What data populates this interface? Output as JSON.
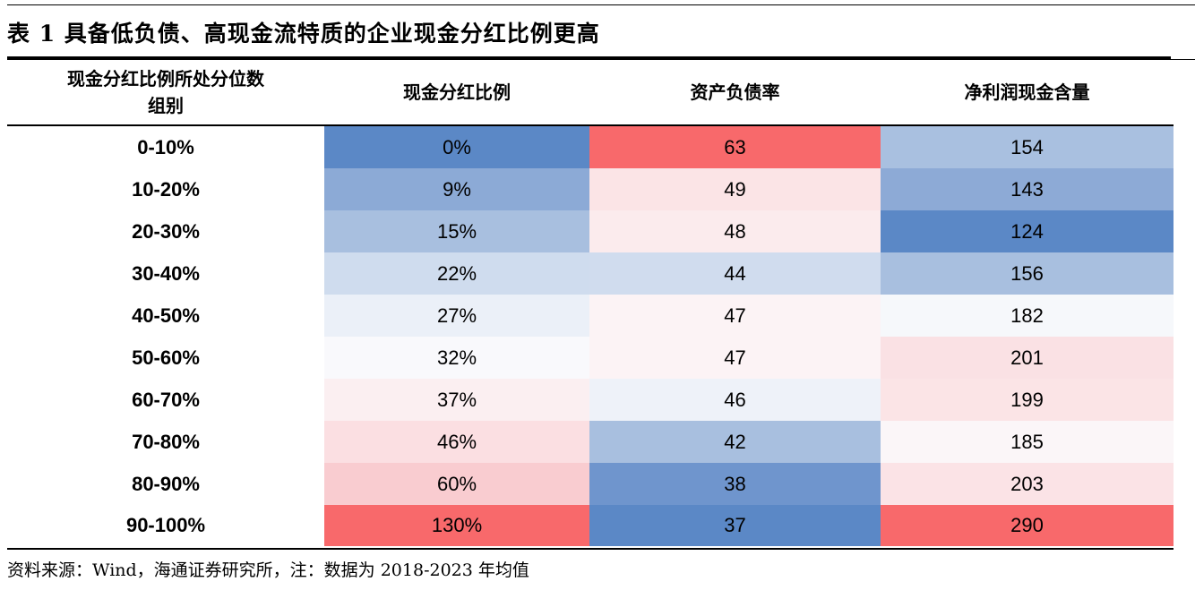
{
  "title": "表 1  具备低负债、高现金流特质的企业现金分红比例更高",
  "headers": {
    "group_line1": "现金分红比例所处分位数",
    "group_line2": "组别",
    "dividend": "现金分红比例",
    "debt": "资产负债率",
    "cash": "净利润现金含量"
  },
  "rows": [
    {
      "group": "0-10%",
      "dividend": "0%",
      "debt": "63",
      "cash": "154"
    },
    {
      "group": "10-20%",
      "dividend": "9%",
      "debt": "49",
      "cash": "143"
    },
    {
      "group": "20-30%",
      "dividend": "15%",
      "debt": "48",
      "cash": "124"
    },
    {
      "group": "30-40%",
      "dividend": "22%",
      "debt": "44",
      "cash": "156"
    },
    {
      "group": "40-50%",
      "dividend": "27%",
      "debt": "47",
      "cash": "182"
    },
    {
      "group": "50-60%",
      "dividend": "32%",
      "debt": "47",
      "cash": "201"
    },
    {
      "group": "60-70%",
      "dividend": "37%",
      "debt": "46",
      "cash": "199"
    },
    {
      "group": "70-80%",
      "dividend": "46%",
      "debt": "42",
      "cash": "185"
    },
    {
      "group": "80-90%",
      "dividend": "60%",
      "debt": "38",
      "cash": "203"
    },
    {
      "group": "90-100%",
      "dividend": "130%",
      "debt": "37",
      "cash": "290"
    }
  ],
  "heatmap_colors": [
    {
      "dividend": "#5b88c6",
      "debt": "#f8696b",
      "cash": "#a9c0e0"
    },
    {
      "dividend": "#8caad6",
      "debt": "#fbe4e6",
      "cash": "#8daad6"
    },
    {
      "dividend": "#a8bfdf",
      "debt": "#fbebed",
      "cash": "#5b88c6"
    },
    {
      "dividend": "#cfdcee",
      "debt": "#d0dcee",
      "cash": "#a8bfdf"
    },
    {
      "dividend": "#ebf0f8",
      "debt": "#fcf3f5",
      "cash": "#f6f8fb"
    },
    {
      "dividend": "#f9f9fc",
      "debt": "#fcf3f5",
      "cash": "#fae1e4"
    },
    {
      "dividend": "#fbeff1",
      "debt": "#eef2f9",
      "cash": "#fbe4e6"
    },
    {
      "dividend": "#fbdfe2",
      "debt": "#a8bfdf",
      "cash": "#fbf6f8"
    },
    {
      "dividend": "#f9ccd0",
      "debt": "#6f95cd",
      "cash": "#fbe3e6"
    },
    {
      "dividend": "#f8696b",
      "debt": "#5b88c6",
      "cash": "#f8696b"
    }
  ],
  "source": "资料来源：Wind，海通证券研究所，注：数据为 2018-2023 年均值"
}
